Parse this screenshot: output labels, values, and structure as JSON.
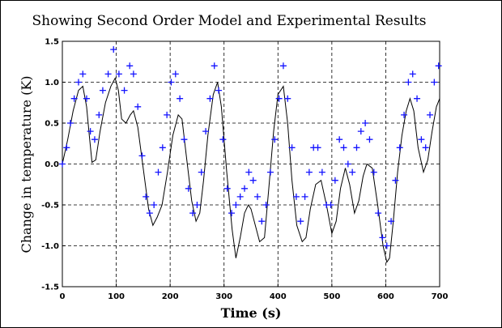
{
  "chart_data": {
    "type": "line_scatter",
    "title": "Showing Second Order Model and Experimental Results",
    "x_label": "Time (s)",
    "y_label": "Change in temperature (K)",
    "xlim": [
      0,
      700
    ],
    "xticks": [
      0,
      100,
      200,
      300,
      400,
      500,
      600,
      700
    ],
    "ylim": [
      -1.5,
      1.5
    ],
    "yticks": [
      -1.5,
      {
        "value": -1,
        "label": "-1.0"
      },
      -0.5,
      {
        "value": 0,
        "label": "0.0"
      },
      0.5,
      {
        "value": 1,
        "label": "1.0"
      },
      1.5
    ],
    "grid": true,
    "model": {
      "color": "#000000",
      "x": [
        0,
        10,
        20,
        30,
        38,
        45,
        50,
        55,
        62,
        70,
        80,
        90,
        98,
        104,
        110,
        118,
        126,
        132,
        140,
        150,
        160,
        168,
        176,
        185,
        195,
        205,
        215,
        222,
        230,
        240,
        248,
        255,
        262,
        270,
        280,
        288,
        295,
        305,
        315,
        322,
        330,
        338,
        345,
        350,
        358,
        366,
        375,
        383,
        392,
        400,
        410,
        418,
        426,
        435,
        445,
        452,
        460,
        470,
        480,
        490,
        500,
        508,
        516,
        525,
        533,
        542,
        550,
        558,
        565,
        575,
        585,
        595,
        602,
        607,
        614,
        622,
        630,
        638,
        645,
        652,
        660,
        670,
        678,
        686,
        694,
        700
      ],
      "values": [
        0,
        0.3,
        0.65,
        0.9,
        0.95,
        0.7,
        0.35,
        0.02,
        0.05,
        0.4,
        0.75,
        0.95,
        1.05,
        0.9,
        0.55,
        0.5,
        0.6,
        0.65,
        0.45,
        -0.05,
        -0.55,
        -0.75,
        -0.65,
        -0.5,
        -0.1,
        0.35,
        0.6,
        0.55,
        0.1,
        -0.45,
        -0.7,
        -0.6,
        -0.2,
        0.35,
        0.85,
        1.0,
        0.7,
        -0.1,
        -0.8,
        -1.15,
        -0.9,
        -0.6,
        -0.5,
        -0.55,
        -0.75,
        -0.95,
        -0.9,
        -0.3,
        0.4,
        0.85,
        0.95,
        0.5,
        -0.2,
        -0.75,
        -0.95,
        -0.9,
        -0.55,
        -0.25,
        -0.2,
        -0.5,
        -0.85,
        -0.7,
        -0.3,
        -0.05,
        -0.25,
        -0.6,
        -0.45,
        -0.15,
        0.0,
        -0.05,
        -0.5,
        -1.0,
        -1.2,
        -1.15,
        -0.7,
        -0.1,
        0.35,
        0.65,
        0.8,
        0.65,
        0.2,
        -0.1,
        0.05,
        0.4,
        0.7,
        0.8
      ]
    },
    "experiment": {
      "color": "#1414ff",
      "x": [
        0,
        8,
        15,
        22,
        30,
        38,
        45,
        52,
        60,
        68,
        75,
        85,
        95,
        105,
        115,
        125,
        132,
        140,
        148,
        155,
        162,
        170,
        178,
        186,
        194,
        202,
        210,
        218,
        226,
        234,
        242,
        250,
        258,
        266,
        274,
        282,
        290,
        298,
        306,
        314,
        322,
        330,
        338,
        346,
        354,
        362,
        370,
        378,
        386,
        394,
        402,
        410,
        418,
        426,
        434,
        442,
        450,
        458,
        466,
        474,
        482,
        490,
        498,
        506,
        514,
        522,
        530,
        538,
        546,
        554,
        562,
        570,
        578,
        586,
        594,
        602,
        610,
        618,
        626,
        634,
        642,
        650,
        658,
        666,
        674,
        682,
        690,
        698
      ],
      "values": [
        0,
        0.2,
        0.5,
        0.8,
        1.0,
        1.1,
        0.8,
        0.4,
        0.3,
        0.6,
        0.9,
        1.1,
        1.4,
        1.1,
        0.9,
        1.2,
        1.1,
        0.7,
        0.1,
        -0.4,
        -0.6,
        -0.5,
        -0.1,
        0.2,
        0.6,
        1.0,
        1.1,
        0.8,
        0.3,
        -0.3,
        -0.6,
        -0.5,
        -0.1,
        0.4,
        0.8,
        1.2,
        0.9,
        0.3,
        -0.3,
        -0.6,
        -0.5,
        -0.4,
        -0.3,
        -0.1,
        -0.2,
        -0.4,
        -0.7,
        -0.5,
        -0.1,
        0.3,
        0.8,
        1.2,
        0.8,
        0.2,
        -0.4,
        -0.7,
        -0.4,
        -0.1,
        0.2,
        0.2,
        -0.1,
        -0.5,
        -0.5,
        -0.2,
        0.3,
        0.2,
        0.0,
        -0.1,
        0.2,
        0.4,
        0.5,
        0.3,
        -0.1,
        -0.6,
        -0.9,
        -1.0,
        -0.7,
        -0.2,
        0.2,
        0.6,
        1.0,
        1.1,
        0.8,
        0.3,
        0.2,
        0.6,
        1.0,
        1.2
      ]
    }
  }
}
